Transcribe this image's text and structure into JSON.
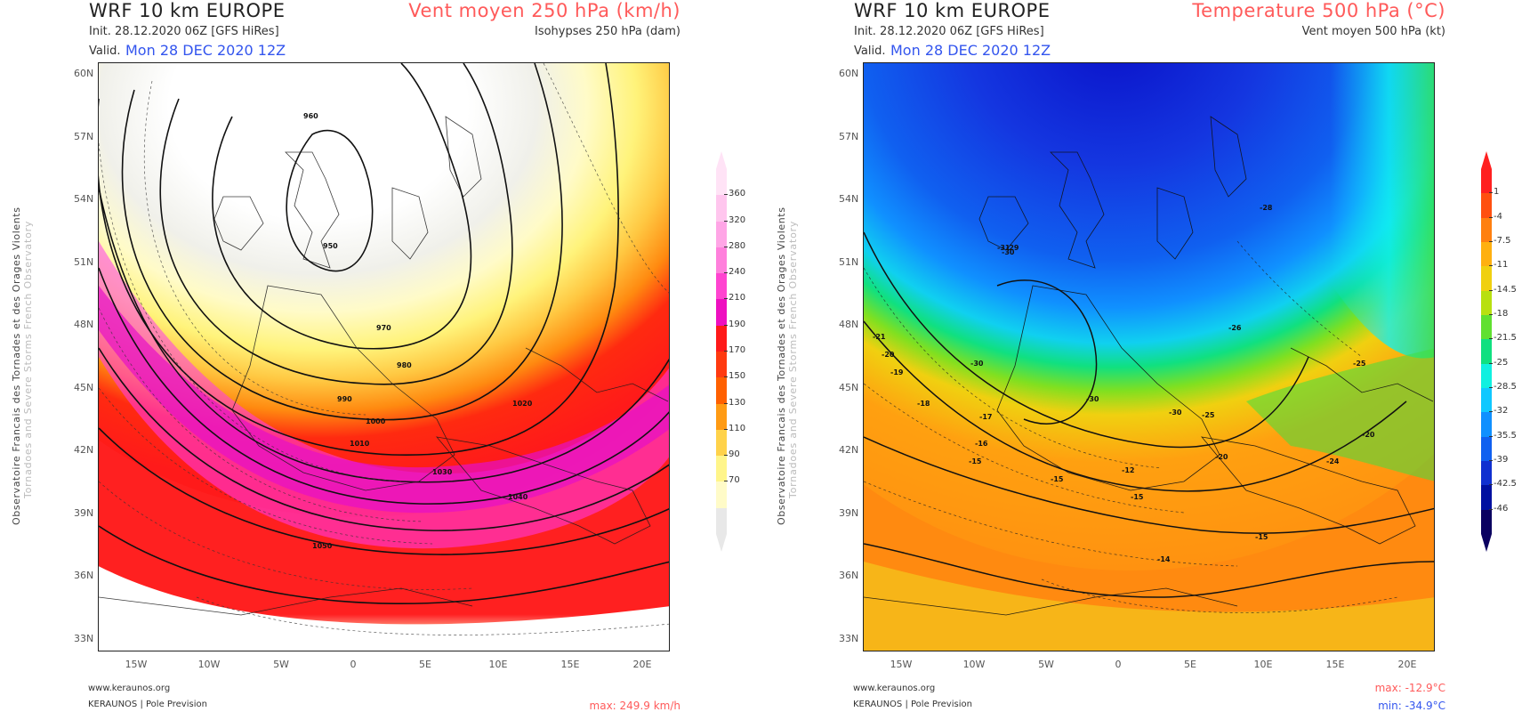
{
  "left_panel": {
    "title": "WRF 10 km EUROPE",
    "init": "Init.   28.12.2020  06Z  [GFS HiRes]",
    "valid_label": "Valid.",
    "valid_value": "Mon 28 DEC 2020 12Z",
    "field_title": "Vent moyen 250 hPa (km/h)",
    "field_subtitle": "Isohypses 250 hPa (dam)",
    "stat_max": "max: 249.9 km/h",
    "colorbar_ticks": [
      "360",
      "320",
      "280",
      "240",
      "210",
      "190",
      "170",
      "150",
      "130",
      "110",
      "90",
      "70"
    ],
    "colorbar_colors": [
      "#ffe3f6",
      "#ffc6ee",
      "#ffa6e6",
      "#ff80dc",
      "#ff44d0",
      "#ee10c0",
      "#ff1a1a",
      "#ff3a10",
      "#ff6000",
      "#ff9b14",
      "#ffd24a",
      "#fff58a",
      "#fffbc8",
      "#e8e8e8"
    ],
    "contour_labels": [
      "950",
      "960",
      "970",
      "980",
      "990",
      "1000",
      "1010",
      "1020",
      "1030",
      "1040",
      "1050"
    ]
  },
  "right_panel": {
    "title": "WRF 10 km EUROPE",
    "init": "Init.   28.12.2020  06Z  [GFS HiRes]",
    "valid_label": "Valid.",
    "valid_value": "Mon 28 DEC 2020 12Z",
    "field_title": "Temperature 500 hPa (°C)",
    "field_subtitle": "Vent moyen 500 hPa (kt)",
    "stat_max": "max: -12.9°C",
    "stat_min": "min: -34.9°C",
    "colorbar_ticks": [
      "1",
      "-4",
      "-7.5",
      "-11",
      "-14.5",
      "-18",
      "-21.5",
      "-25",
      "-28.5",
      "-32",
      "-35.5",
      "-39",
      "-42.5",
      "-46"
    ],
    "colorbar_colors": [
      "#ff2020",
      "#ff5010",
      "#ff8010",
      "#ffb010",
      "#f0d010",
      "#b8e010",
      "#60e030",
      "#10e080",
      "#10f0e0",
      "#10c8ff",
      "#1090ff",
      "#1060f0",
      "#1030d0",
      "#0010a0",
      "#0a0060"
    ],
    "contour_labels": [
      "-15",
      "-20",
      "-25",
      "-30",
      "-31",
      "-29",
      "-28",
      "-26",
      "-24",
      "-21",
      "-19",
      "-18",
      "-17",
      "-16",
      "-14",
      "-12"
    ]
  },
  "lat_labels": [
    "60N",
    "57N",
    "54N",
    "51N",
    "48N",
    "45N",
    "42N",
    "39N",
    "36N",
    "33N"
  ],
  "lon_labels": [
    "15W",
    "10W",
    "5W",
    "0",
    "5E",
    "10E",
    "15E",
    "20E"
  ],
  "credits": {
    "website": "www.keraunos.org",
    "org": "KERAUNOS | Pole Prevision"
  },
  "sidebar": {
    "line1": "Observatoire Francais des Tornades et des Orages Violents",
    "line2": "Tornadoes and Severe Storms French Observatory"
  },
  "colors": {
    "title_red": "#ff5a5a",
    "valid_blue": "#3355ee",
    "min_blue": "#3355ee"
  }
}
